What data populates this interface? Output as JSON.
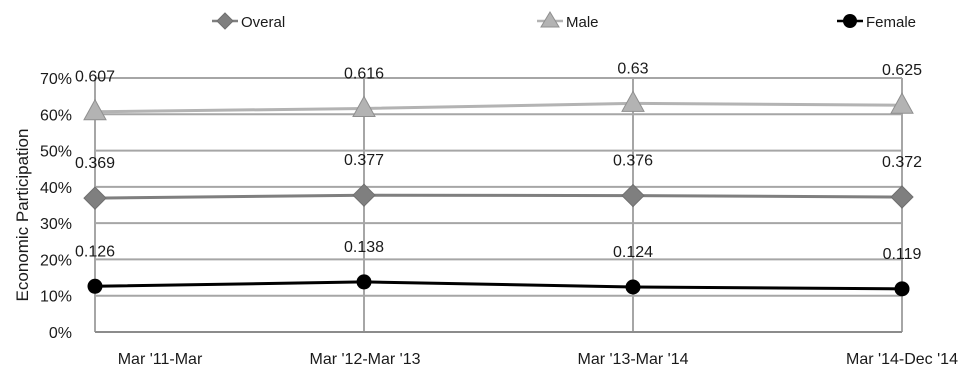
{
  "chart_data": {
    "type": "line",
    "title": "",
    "xlabel": "",
    "ylabel": "Economic Participation",
    "categories": [
      "Mar '11-Mar",
      "Mar '12-Mar '13",
      "Mar '13-Mar '14",
      "Mar '14-Dec '14"
    ],
    "ylim": [
      0,
      0.7
    ],
    "yticks": [
      0,
      0.1,
      0.2,
      0.3,
      0.4,
      0.5,
      0.6,
      0.7
    ],
    "ytick_labels": [
      "0%",
      "10%",
      "20%",
      "30%",
      "40%",
      "50%",
      "60%",
      "70%"
    ],
    "grid": true,
    "legend_position": "top",
    "series": [
      {
        "name": "Overal",
        "marker": "diamond",
        "color": "#7f7f7f",
        "values": [
          0.369,
          0.377,
          0.376,
          0.372
        ],
        "labels": [
          "0.369",
          "0.377",
          "0.376",
          "0.372"
        ]
      },
      {
        "name": "Male",
        "marker": "triangle",
        "color": "#b3b3b3",
        "values": [
          0.607,
          0.616,
          0.63,
          0.625
        ],
        "labels": [
          "0.607",
          "0.616",
          "0.63",
          "0.625"
        ]
      },
      {
        "name": "Female",
        "marker": "circle",
        "color": "#000000",
        "values": [
          0.126,
          0.138,
          0.124,
          0.119
        ],
        "labels": [
          "0.126",
          "0.138",
          "0.124",
          "0.119"
        ]
      }
    ]
  }
}
